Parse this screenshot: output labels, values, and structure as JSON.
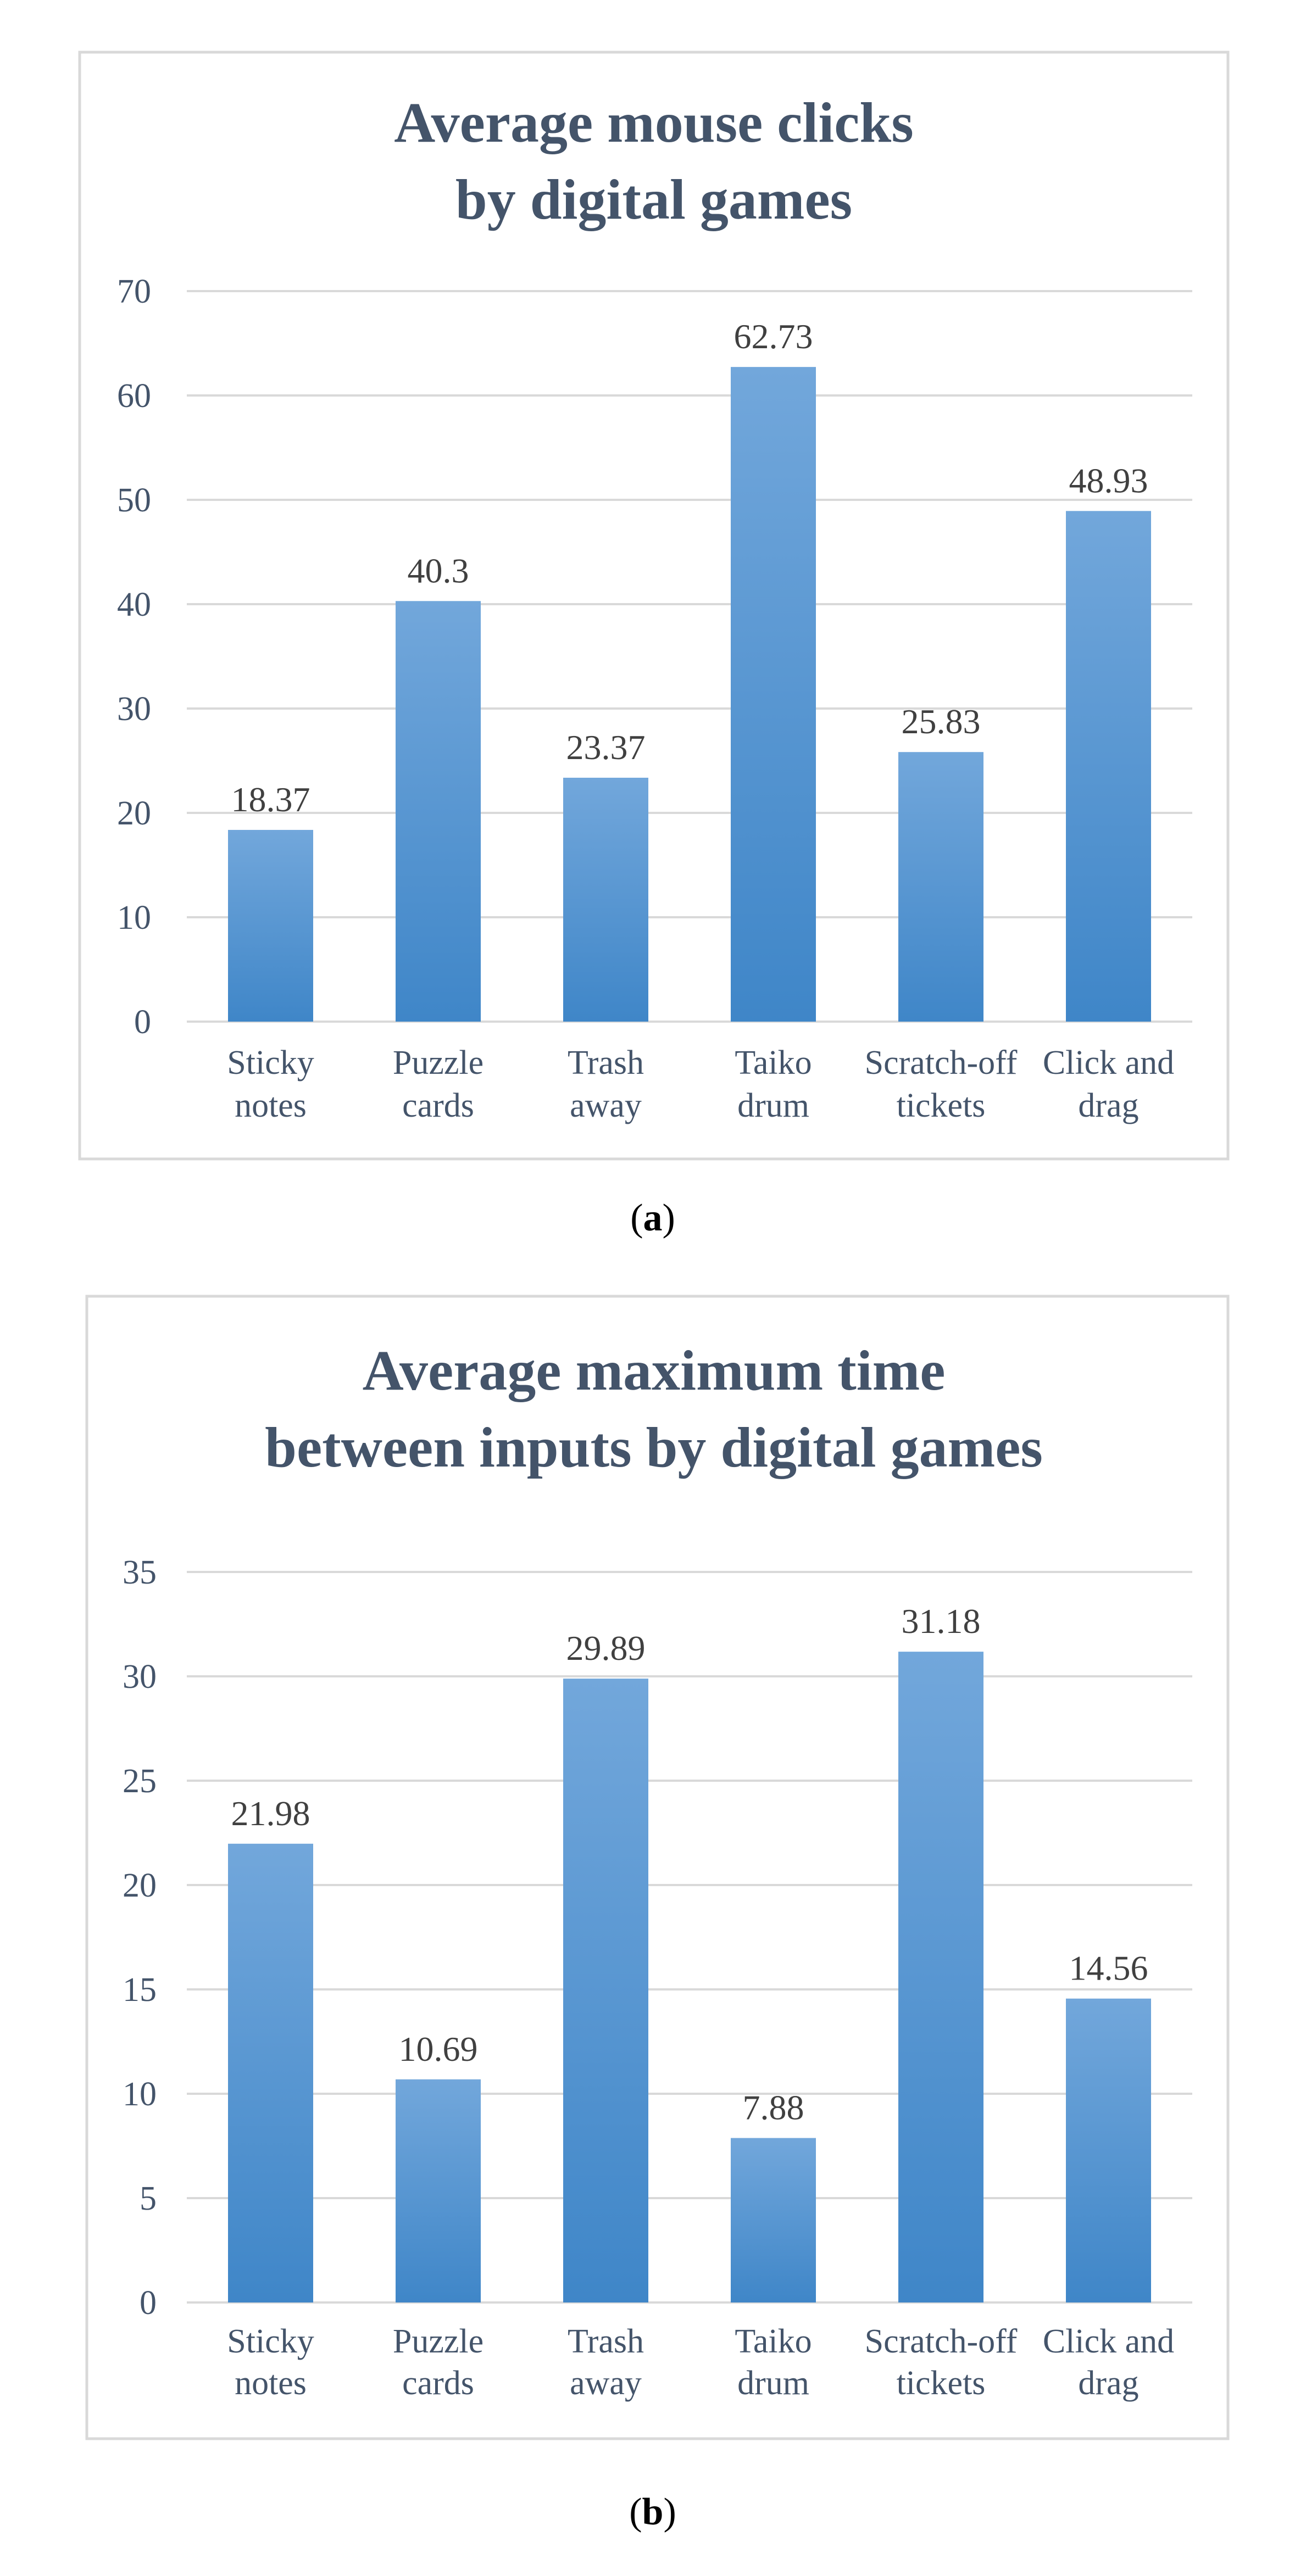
{
  "chart_data": [
    {
      "panel_label": "a",
      "type": "bar",
      "title": [
        "Average mouse clicks",
        "by digital games"
      ],
      "categories": [
        [
          "Sticky",
          "notes"
        ],
        [
          "Puzzle",
          "cards"
        ],
        [
          "Trash",
          "away"
        ],
        [
          "Taiko",
          "drum"
        ],
        [
          "Scratch-off",
          "tickets"
        ],
        [
          "Click and",
          "drag"
        ]
      ],
      "values": [
        18.37,
        40.3,
        23.37,
        62.73,
        25.83,
        48.93
      ],
      "value_labels": [
        "18.37",
        "40.3",
        "23.37",
        "62.73",
        "25.83",
        "48.93"
      ],
      "yticks": [
        0,
        10,
        20,
        30,
        40,
        50,
        60,
        70
      ],
      "ylim": [
        0,
        70
      ],
      "xlabel": "",
      "ylabel": "",
      "grid": true,
      "legend": "none"
    },
    {
      "panel_label": "b",
      "type": "bar",
      "title": [
        "Average maximum time",
        "between inputs by digital games"
      ],
      "categories": [
        [
          "Sticky",
          "notes"
        ],
        [
          "Puzzle",
          "cards"
        ],
        [
          "Trash",
          "away"
        ],
        [
          "Taiko",
          "drum"
        ],
        [
          "Scratch-off",
          "tickets"
        ],
        [
          "Click and",
          "drag"
        ]
      ],
      "values": [
        21.98,
        10.69,
        29.89,
        7.88,
        31.18,
        14.56
      ],
      "value_labels": [
        "21.98",
        "10.69",
        "29.89",
        "7.88",
        "31.18",
        "14.56"
      ],
      "yticks": [
        0,
        5,
        10,
        15,
        20,
        25,
        30,
        35
      ],
      "ylim": [
        0,
        35
      ],
      "xlabel": "",
      "ylabel": "",
      "grid": true,
      "legend": "none"
    }
  ],
  "colors": {
    "bar_top": "#72a7db",
    "bar_bottom": "#3f86c8",
    "grid": "#d9d9d9",
    "frame": "#d9d9d9",
    "text": "#44546a"
  }
}
